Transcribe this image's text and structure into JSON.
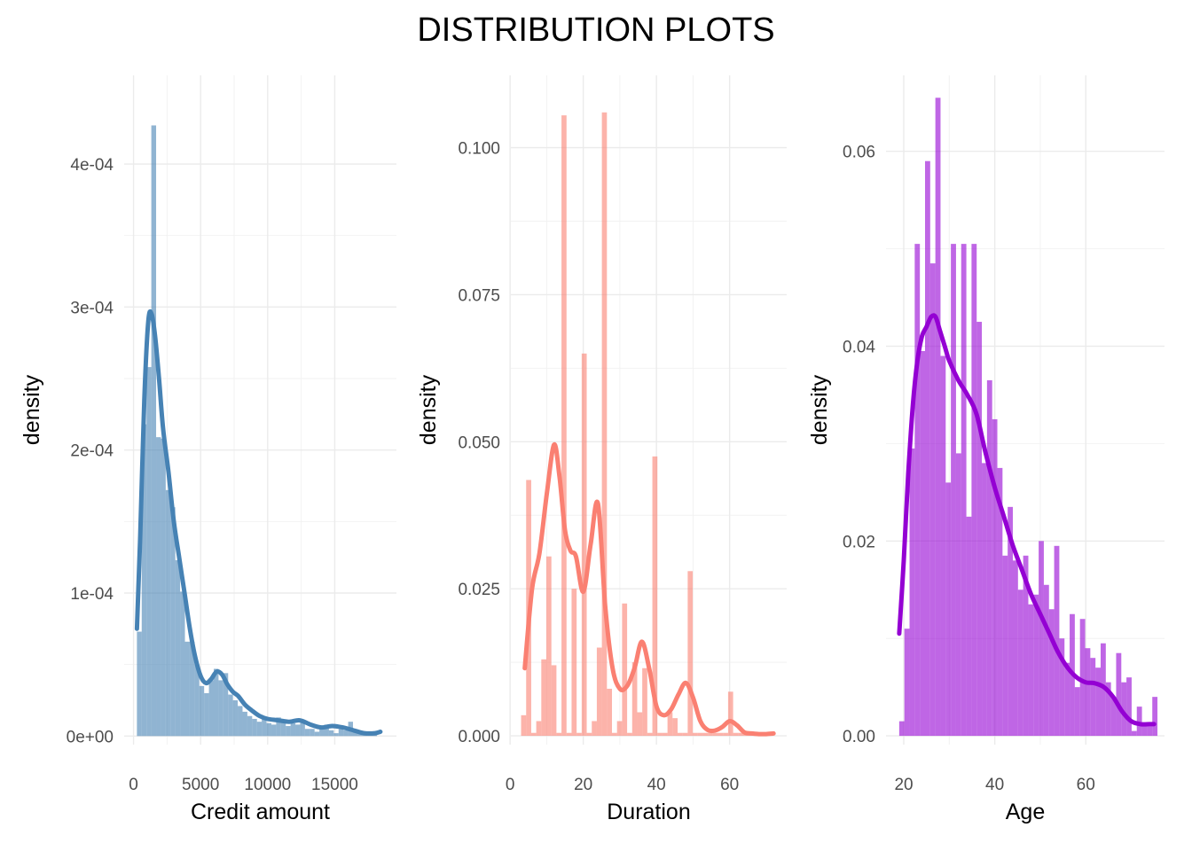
{
  "title": "DISTRIBUTION PLOTS",
  "chart_data": [
    {
      "type": "histogram+density",
      "xlabel": "Credit amount",
      "ylabel": "density",
      "color": "#4682B4",
      "bar_opacity": 0.6,
      "xlim": [
        -700,
        19600
      ],
      "ylim": [
        -6e-06,
        0.000462
      ],
      "x_ticks": [
        0,
        5000,
        10000,
        15000
      ],
      "x_tick_labels": [
        "0",
        "5000",
        "10000",
        "15000"
      ],
      "y_ticks": [
        0,
        0.0001,
        0.0002,
        0.0003,
        0.0004
      ],
      "y_tick_labels": [
        "0e+00",
        "1e-04",
        "2e-04",
        "3e-04",
        "4e-04"
      ],
      "bin_start": 250,
      "bin_width": 358,
      "bin_values": [
        7.3e-05,
        0.000218,
        0.000258,
        0.000427,
        0.000209,
        0.000208,
        0.000172,
        0.00016,
        0.000123,
        0.000101,
        6.6e-05,
        6.6e-05,
        5e-05,
        3.5e-05,
        3e-05,
        3.9e-05,
        4.7e-05,
        3.9e-05,
        4.4e-05,
        2.9e-05,
        2.5e-05,
        2.1e-05,
        1.7e-05,
        1.4e-05,
        1.2e-05,
        1e-05,
        1.2e-05,
        9e-06,
        8e-06,
        1.3e-05,
        1e-05,
        7e-06,
        9e-06,
        8e-06,
        1e-05,
        5e-06,
        5e-06,
        3e-06,
        5e-06,
        8e-06,
        4e-06,
        2e-06,
        5e-06,
        4e-06,
        1e-05,
        3e-06,
        2e-06,
        2e-06,
        2e-06,
        3e-06
      ],
      "density_x": [
        250,
        500,
        800,
        1100,
        1350,
        1600,
        1900,
        2200,
        2600,
        3000,
        3400,
        3800,
        4200,
        4600,
        5000,
        5400,
        5800,
        6200,
        6600,
        7000,
        7400,
        7800,
        8300,
        8800,
        9400,
        10000,
        10800,
        11600,
        12400,
        13200,
        14000,
        14800,
        15600,
        16400,
        17200,
        18000,
        18400
      ],
      "density_y": [
        7.5e-05,
        0.00014,
        0.000235,
        0.00029,
        0.000295,
        0.00028,
        0.00025,
        0.000215,
        0.000185,
        0.00015,
        0.000125,
        0.0001,
        7.5e-05,
        5.5e-05,
        4.2e-05,
        3.7e-05,
        4e-05,
        4.5e-05,
        4.3e-05,
        3.6e-05,
        3.1e-05,
        2.8e-05,
        2.2e-05,
        1.8e-05,
        1.4e-05,
        1.2e-05,
        1.1e-05,
        1e-05,
        1.1e-05,
        8e-06,
        6e-06,
        7e-06,
        6e-06,
        4e-06,
        2e-06,
        2e-06,
        3e-06
      ]
    },
    {
      "type": "histogram+density",
      "xlabel": "Duration",
      "ylabel": "density",
      "color": "#FA8072",
      "bar_opacity": 0.6,
      "xlim": [
        0.2,
        75.6
      ],
      "ylim": [
        -0.0015,
        0.1123
      ],
      "x_ticks": [
        0,
        20,
        40,
        60
      ],
      "x_tick_labels": [
        "0",
        "20",
        "40",
        "60"
      ],
      "y_ticks": [
        0,
        0.025,
        0.05,
        0.075,
        0.1
      ],
      "y_tick_labels": [
        "0.000",
        "0.025",
        "0.050",
        "0.075",
        "0.100"
      ],
      "bin_start": 3,
      "bin_width": 1.38,
      "bin_values": [
        0.0035,
        0.0435,
        0.0005,
        0.0025,
        0.013,
        0.0305,
        0.012,
        0.0005,
        0.1055,
        0.0005,
        0.025,
        0.0005,
        0.065,
        0.0005,
        0.0025,
        0.015,
        0.106,
        0.008,
        0.0005,
        0.0025,
        0.0225,
        0.0005,
        0.0125,
        0.004,
        0.0115,
        0.0005,
        0.0475,
        0.0005,
        0.0005,
        0.004,
        0.003,
        0.0005,
        0.0005,
        0.028,
        0.0005,
        0.0005,
        0.0005,
        0.0005,
        0.0005,
        0.0005,
        0.0005,
        0.0075,
        0.0005,
        0.0005,
        0.0005,
        0.0005,
        0.0005,
        0.0005,
        0.0005,
        0.0005
      ],
      "density_x": [
        4,
        6,
        8,
        10,
        12,
        13.5,
        15,
        16.5,
        18,
        20,
        22,
        24,
        26,
        28,
        30,
        32,
        34,
        36,
        38,
        40,
        42,
        44,
        46,
        48,
        50,
        52,
        54,
        56,
        58,
        60,
        62,
        64,
        66,
        68,
        70,
        72
      ],
      "density_y": [
        0.0115,
        0.025,
        0.031,
        0.041,
        0.0495,
        0.044,
        0.035,
        0.0315,
        0.0305,
        0.0245,
        0.0325,
        0.0395,
        0.022,
        0.0115,
        0.008,
        0.0085,
        0.0115,
        0.016,
        0.0115,
        0.005,
        0.0035,
        0.0045,
        0.007,
        0.009,
        0.0065,
        0.0025,
        0.001,
        0.0009,
        0.0015,
        0.0025,
        0.0018,
        0.0006,
        0.0004,
        0.0003,
        0.0003,
        0.0004
      ]
    },
    {
      "type": "histogram+density",
      "xlabel": "Age",
      "ylabel": "density",
      "color": "#9400D3",
      "bar_opacity": 0.6,
      "xlim": [
        16.1,
        77.3
      ],
      "ylim": [
        -0.0009,
        0.0678
      ],
      "x_ticks": [
        20,
        40,
        60
      ],
      "x_tick_labels": [
        "20",
        "40",
        "60"
      ],
      "y_ticks": [
        0,
        0.02,
        0.04,
        0.06
      ],
      "y_tick_labels": [
        "0.00",
        "0.02",
        "0.04",
        "0.06"
      ],
      "bin_start": 19,
      "bin_width": 1.135,
      "bin_values": [
        0.0015,
        0.011,
        0.0295,
        0.0505,
        0.0395,
        0.059,
        0.0485,
        0.0655,
        0.039,
        0.026,
        0.0505,
        0.029,
        0.0505,
        0.0225,
        0.0505,
        0.0425,
        0.028,
        0.0365,
        0.0325,
        0.0275,
        0.0185,
        0.0235,
        0.018,
        0.015,
        0.0185,
        0.0135,
        0.0145,
        0.02,
        0.0155,
        0.013,
        0.0195,
        0.01,
        0.0075,
        0.0125,
        0.005,
        0.012,
        0.009,
        0.008,
        0.007,
        0.0095,
        0.0055,
        0.004,
        0.0085,
        0.0055,
        0.006,
        0.0005,
        0.003,
        0.001,
        0.001,
        0.004
      ],
      "density_x": [
        19,
        20,
        21,
        22,
        23,
        24,
        25,
        26,
        27,
        28,
        29,
        30,
        32,
        34,
        36,
        38,
        40,
        42,
        44,
        46,
        48,
        50,
        52,
        54,
        56,
        58,
        60,
        62,
        64,
        66,
        68,
        70,
        72,
        74,
        75
      ],
      "density_y": [
        0.0105,
        0.018,
        0.027,
        0.034,
        0.0385,
        0.041,
        0.042,
        0.043,
        0.043,
        0.0415,
        0.04,
        0.0385,
        0.0365,
        0.035,
        0.033,
        0.029,
        0.0255,
        0.0225,
        0.0195,
        0.017,
        0.0145,
        0.0125,
        0.0105,
        0.0085,
        0.007,
        0.006,
        0.0055,
        0.0054,
        0.005,
        0.004,
        0.0025,
        0.0015,
        0.0012,
        0.0012,
        0.0012
      ]
    }
  ]
}
